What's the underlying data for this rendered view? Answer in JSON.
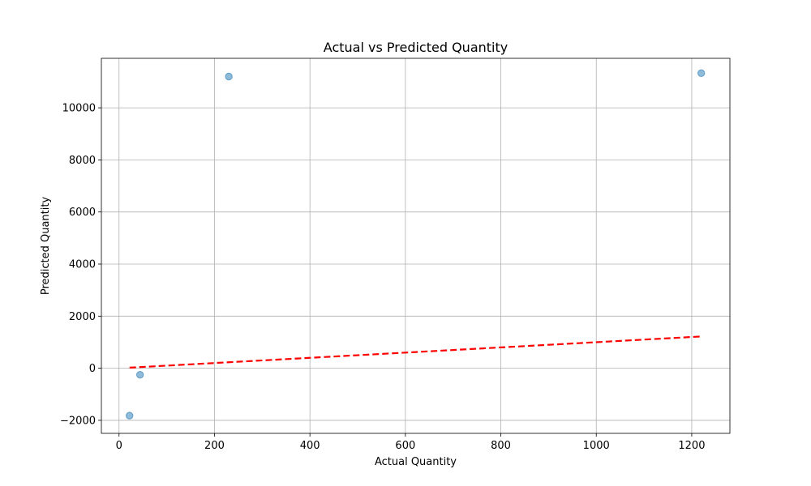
{
  "chart_data": {
    "type": "scatter",
    "title": "Actual vs Predicted Quantity",
    "xlabel": "Actual Quantity",
    "ylabel": "Predicted Quantity",
    "xlim": [
      -37,
      1280
    ],
    "ylim": [
      -2500,
      11900
    ],
    "xticks": [
      0,
      200,
      400,
      600,
      800,
      1000,
      1200
    ],
    "yticks": [
      -2000,
      0,
      2000,
      4000,
      6000,
      8000,
      10000
    ],
    "ytick_labels": [
      "−2000",
      "0",
      "2000",
      "4000",
      "6000",
      "8000",
      "10000"
    ],
    "grid": true,
    "points": {
      "x": [
        22,
        44,
        230,
        1220
      ],
      "y": [
        -1820,
        -250,
        11200,
        11330
      ],
      "color": "#1f77b4",
      "alpha": 0.5
    },
    "reference_line": {
      "x": [
        22,
        1220
      ],
      "y": [
        22,
        1220
      ],
      "color": "#ff0000",
      "style": "dashed"
    }
  }
}
